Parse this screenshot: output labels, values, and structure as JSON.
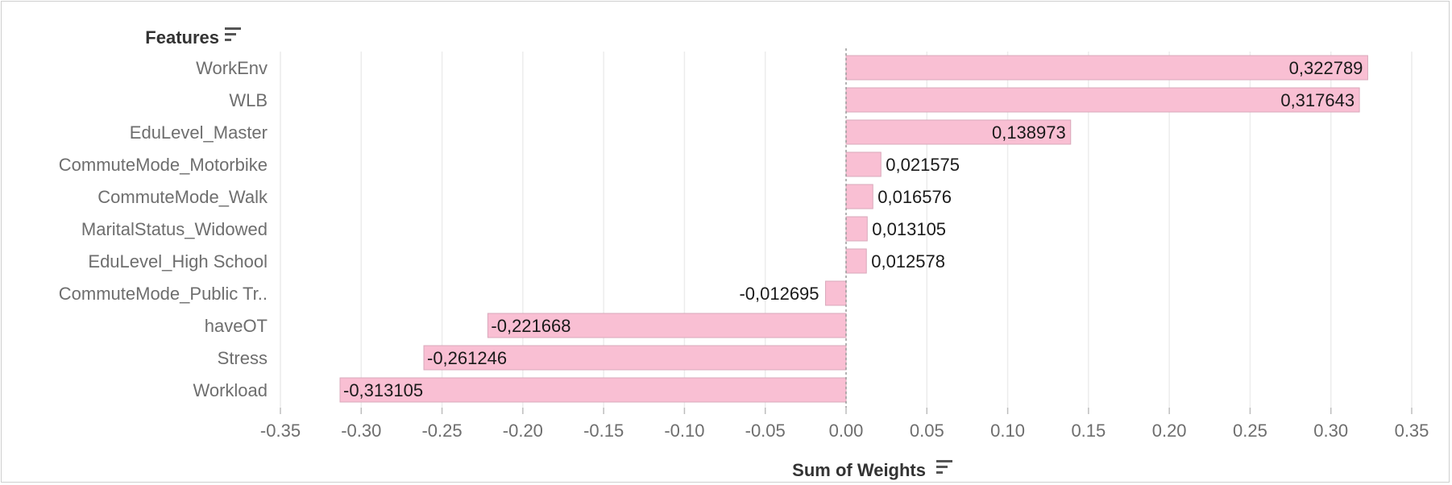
{
  "chart_data": {
    "type": "bar",
    "orientation": "horizontal",
    "row_header": "Features",
    "xlabel": "Sum of Weights",
    "categories": [
      "WorkEnv",
      "WLB",
      "EduLevel_Master",
      "CommuteMode_Motorbike",
      "CommuteMode_Walk",
      "MaritalStatus_Widowed",
      "EduLevel_High School",
      "CommuteMode_Public Tr..",
      "haveOT",
      "Stress",
      "Workload"
    ],
    "values": [
      0.322789,
      0.317643,
      0.138973,
      0.021575,
      0.016576,
      0.013105,
      0.012578,
      -0.012695,
      -0.221668,
      -0.261246,
      -0.313105
    ],
    "value_labels": [
      "0,322789",
      "0,317643",
      "0,138973",
      "0,021575",
      "0,016576",
      "0,013105",
      "0,012578",
      "-0,012695",
      "-0,221668",
      "-0,261246",
      "-0,313105"
    ],
    "xlim": [
      -0.35,
      0.35
    ],
    "xticks": [
      -0.35,
      -0.3,
      -0.25,
      -0.2,
      -0.15,
      -0.1,
      -0.05,
      0.0,
      0.05,
      0.1,
      0.15,
      0.2,
      0.25,
      0.3,
      0.35
    ],
    "xtick_labels": [
      "-0.35",
      "-0.30",
      "-0.25",
      "-0.20",
      "-0.15",
      "-0.10",
      "-0.05",
      "0.00",
      "0.05",
      "0.10",
      "0.15",
      "0.20",
      "0.25",
      "0.30",
      "0.35"
    ],
    "grid": "vertical",
    "legend": "none",
    "colors": {
      "bar": "#f9bfd3",
      "bar_stroke": "#d9a9bb",
      "grid": "#ececec",
      "zero_line": "#9a9a9a",
      "label_text": "#6e6e6e",
      "value_text": "#1a1a1a",
      "header_text": "#333333"
    },
    "icons": {
      "row_header_sort": "sort-icon",
      "axis_title_sort": "sort-icon"
    }
  }
}
